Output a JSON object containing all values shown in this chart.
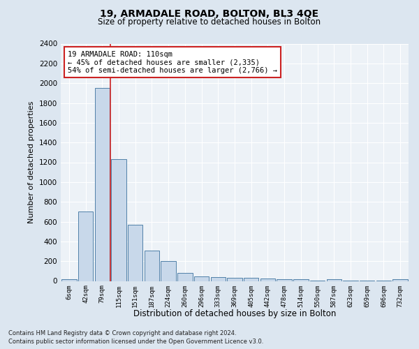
{
  "title1": "19, ARMADALE ROAD, BOLTON, BL3 4QE",
  "title2": "Size of property relative to detached houses in Bolton",
  "xlabel": "Distribution of detached houses by size in Bolton",
  "ylabel": "Number of detached properties",
  "bin_labels": [
    "6sqm",
    "42sqm",
    "79sqm",
    "115sqm",
    "151sqm",
    "187sqm",
    "224sqm",
    "260sqm",
    "296sqm",
    "333sqm",
    "369sqm",
    "405sqm",
    "442sqm",
    "478sqm",
    "514sqm",
    "550sqm",
    "587sqm",
    "623sqm",
    "659sqm",
    "696sqm",
    "732sqm"
  ],
  "bar_heights": [
    15,
    700,
    1950,
    1230,
    570,
    305,
    200,
    80,
    45,
    38,
    35,
    30,
    25,
    20,
    18,
    5,
    15,
    3,
    2,
    2,
    15
  ],
  "bar_color": "#c8d8ea",
  "bar_edge_color": "#5080a8",
  "vline_color": "#cc2222",
  "annotation_text": "19 ARMADALE ROAD: 110sqm\n← 45% of detached houses are smaller (2,335)\n54% of semi-detached houses are larger (2,766) →",
  "annotation_box_color": "#cc2222",
  "ylim": [
    0,
    2400
  ],
  "yticks": [
    0,
    200,
    400,
    600,
    800,
    1000,
    1200,
    1400,
    1600,
    1800,
    2000,
    2200,
    2400
  ],
  "footer1": "Contains HM Land Registry data © Crown copyright and database right 2024.",
  "footer2": "Contains public sector information licensed under the Open Government Licence v3.0.",
  "bg_color": "#dce6f0",
  "plot_bg_color": "#edf2f7"
}
